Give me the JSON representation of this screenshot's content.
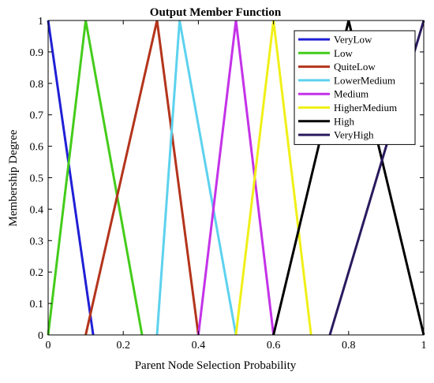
{
  "chart_data": {
    "type": "line",
    "title": "Output Member Function",
    "xlabel": "Parent Node Selection Probability",
    "ylabel": "Membership Degree",
    "xlim": [
      0,
      1
    ],
    "ylim": [
      0,
      1
    ],
    "x_ticks": [
      0,
      0.2,
      0.4,
      0.6,
      0.8,
      1
    ],
    "x_tick_labels": [
      "0",
      "0.2",
      "0.4",
      "0.6",
      "0.8",
      "1"
    ],
    "y_ticks": [
      0,
      0.1,
      0.2,
      0.3,
      0.4,
      0.5,
      0.6,
      0.7,
      0.8,
      0.9,
      1
    ],
    "y_tick_labels": [
      "0",
      "0.1",
      "0.2",
      "0.3",
      "0.4",
      "0.5",
      "0.6",
      "0.7",
      "0.8",
      "0.9",
      "1"
    ],
    "grid": false,
    "legend_position": "top-right",
    "series": [
      {
        "name": "VeryLow",
        "color": "#1f1fd6",
        "x": [
          0,
          0.12
        ],
        "y": [
          1,
          0
        ]
      },
      {
        "name": "Low",
        "color": "#44cc1a",
        "x": [
          0,
          0.1,
          0.25
        ],
        "y": [
          0,
          1,
          0
        ]
      },
      {
        "name": "QuiteLow",
        "color": "#b4341c",
        "x": [
          0.1,
          0.29,
          0.4
        ],
        "y": [
          0,
          1,
          0
        ]
      },
      {
        "name": "LowerMedium",
        "color": "#5cd2ee",
        "x": [
          0.29,
          0.35,
          0.5
        ],
        "y": [
          0,
          1,
          0
        ]
      },
      {
        "name": "Medium",
        "color": "#c432e8",
        "x": [
          0.4,
          0.5,
          0.6
        ],
        "y": [
          0,
          1,
          0
        ]
      },
      {
        "name": "HigherMedium",
        "color": "#f0f018",
        "x": [
          0.5,
          0.6,
          0.7
        ],
        "y": [
          0,
          1,
          0
        ]
      },
      {
        "name": "High",
        "color": "#000000",
        "x": [
          0.6,
          0.8,
          1
        ],
        "y": [
          0,
          1,
          0
        ]
      },
      {
        "name": "VeryHigh",
        "color": "#2a1a5e",
        "x": [
          0.75,
          1
        ],
        "y": [
          0,
          1
        ]
      }
    ]
  }
}
